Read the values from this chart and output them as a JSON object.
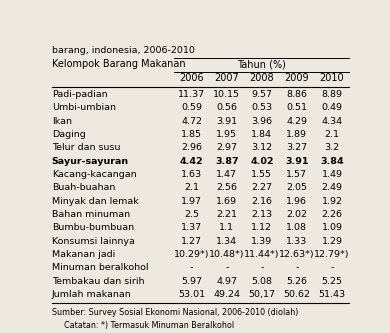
{
  "title": "barang, indonesia, 2006-2010",
  "header_main": "Kelompok Barang Makanan",
  "header_year_group": "Tahun (%)",
  "years": [
    "2006",
    "2007",
    "2008",
    "2009",
    "2010"
  ],
  "rows": [
    {
      "label": "Padi-padian",
      "values": [
        "11.37",
        "10.15",
        "9.57",
        "8.86",
        "8.89"
      ],
      "bold": false
    },
    {
      "label": "Umbi-umbian",
      "values": [
        "0.59",
        "0.56",
        "0.53",
        "0.51",
        "0.49"
      ],
      "bold": false
    },
    {
      "label": "Ikan",
      "values": [
        "4.72",
        "3.91",
        "3.96",
        "4.29",
        "4.34"
      ],
      "bold": false
    },
    {
      "label": "Daging",
      "values": [
        "1.85",
        "1.95",
        "1.84",
        "1.89",
        "2.1"
      ],
      "bold": false
    },
    {
      "label": "Telur dan susu",
      "values": [
        "2.96",
        "2.97",
        "3.12",
        "3.27",
        "3.2"
      ],
      "bold": false
    },
    {
      "label": "Sayur-sayuran",
      "values": [
        "4.42",
        "3.87",
        "4.02",
        "3.91",
        "3.84"
      ],
      "bold": true
    },
    {
      "label": "Kacang-kacangan",
      "values": [
        "1.63",
        "1.47",
        "1.55",
        "1.57",
        "1.49"
      ],
      "bold": false
    },
    {
      "label": "Buah-buahan",
      "values": [
        "2.1",
        "2.56",
        "2.27",
        "2.05",
        "2.49"
      ],
      "bold": false
    },
    {
      "label": "Minyak dan lemak",
      "values": [
        "1.97",
        "1.69",
        "2.16",
        "1.96",
        "1.92"
      ],
      "bold": false
    },
    {
      "label": "Bahan minuman",
      "values": [
        "2.5",
        "2.21",
        "2.13",
        "2.02",
        "2.26"
      ],
      "bold": false
    },
    {
      "label": "Bumbu-bumbuan",
      "values": [
        "1.37",
        "1.1",
        "1.12",
        "1.08",
        "1.09"
      ],
      "bold": false
    },
    {
      "label": "Konsumsi lainnya",
      "values": [
        "1.27",
        "1.34",
        "1.39",
        "1.33",
        "1.29"
      ],
      "bold": false
    },
    {
      "label": "Makanan jadi",
      "values": [
        "10.29*)",
        "10.48*)",
        "11.44*)",
        "12.63*)",
        "12.79*)"
      ],
      "bold": false
    },
    {
      "label": "Minuman beralkohol",
      "values": [
        "-",
        "-",
        "-",
        "-",
        "-"
      ],
      "bold": false
    },
    {
      "label": "Tembakau dan sirih",
      "values": [
        "5.97",
        "4.97",
        "5.08",
        "5.26",
        "5.25"
      ],
      "bold": false
    },
    {
      "label": "Jumlah makanan",
      "values": [
        "53.01",
        "49.24",
        "50,17",
        "50.62",
        "51.43"
      ],
      "bold": false
    }
  ],
  "footer_source": "Sumber: Survey Sosial Ekonomi Nasional, 2006-2010 (diolah)",
  "footer_note": "Catatan: *) Termasuk Minuman Beralkohol",
  "bg_color": "#ede8e0",
  "font_size": 6.8,
  "header_font_size": 7.0
}
